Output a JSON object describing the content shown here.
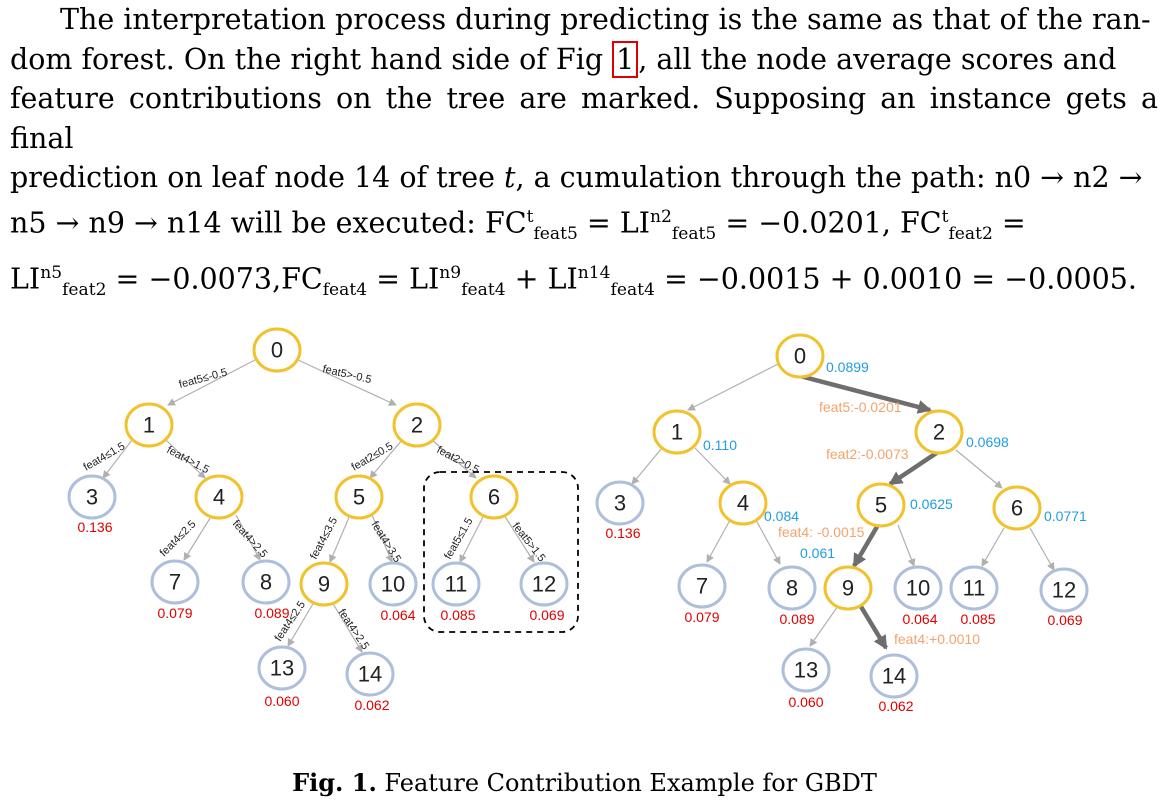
{
  "paragraph": {
    "lines": [
      "The interpretation process during predicting is the same as that of the ran-",
      "dom forest. On the right hand side of Fig ",
      ", all the node average scores and",
      "feature contributions on the tree are marked. Supposing an instance gets a final",
      "prediction on leaf node 14 of tree ",
      "t",
      ", a cumulation through the path: n0 → n2 →",
      "n5 → n9 → n14 will be executed: FC",
      "LI",
      " = −0.0201, FC",
      " =",
      " = −0.0073,FC",
      " = LI",
      " + LI",
      " = −0.0015 + 0.0010 = −0.0005."
    ],
    "fig_ref": "1"
  },
  "left_tree": {
    "nodes": [
      {
        "id": "0"
      },
      {
        "id": "1"
      },
      {
        "id": "2"
      },
      {
        "id": "3",
        "score": "0.136"
      },
      {
        "id": "4"
      },
      {
        "id": "5"
      },
      {
        "id": "6"
      },
      {
        "id": "7",
        "score": "0.079"
      },
      {
        "id": "8",
        "score": "0.089"
      },
      {
        "id": "9"
      },
      {
        "id": "10",
        "score": "0.064"
      },
      {
        "id": "11",
        "score": "0.085"
      },
      {
        "id": "12",
        "score": "0.069"
      },
      {
        "id": "13",
        "score": "0.060"
      },
      {
        "id": "14",
        "score": "0.062"
      }
    ],
    "edge_labels": {
      "e01": "feat5≤-0.5",
      "e02": "feat5>-0.5",
      "e13": "feat4≤1.5",
      "e14": "feat4>1.5",
      "e25": "feat2≤0.5",
      "e26": "feat2>0.5",
      "e47": "feat4≤2.5",
      "e48": "feat4>2.5",
      "e59": "feat4≤3.5",
      "e510": "feat4>3.5",
      "e611": "feat5≤1.5",
      "e612": "feat5>1.5",
      "e913": "feat4≤2.5",
      "e914": "feat4>2.5"
    }
  },
  "right_tree": {
    "nodes": [
      {
        "id": "0",
        "avg": "0.0899"
      },
      {
        "id": "1",
        "avg": "0.110"
      },
      {
        "id": "2",
        "avg": "0.0698"
      },
      {
        "id": "3",
        "score": "0.136"
      },
      {
        "id": "4",
        "avg": "0.084"
      },
      {
        "id": "5",
        "avg": "0.0625"
      },
      {
        "id": "6",
        "avg": "0.0771"
      },
      {
        "id": "7",
        "score": "0.079"
      },
      {
        "id": "8",
        "score": "0.089"
      },
      {
        "id": "9",
        "avg": "0.061"
      },
      {
        "id": "10",
        "score": "0.064"
      },
      {
        "id": "11",
        "score": "0.085"
      },
      {
        "id": "12",
        "score": "0.069"
      },
      {
        "id": "13",
        "score": "0.060"
      },
      {
        "id": "14",
        "score": "0.062"
      }
    ],
    "contributions": {
      "c02": "feat5:-0.0201",
      "c25": "feat2:-0.0073",
      "c59": "feat4: -0.0015",
      "c914": "feat4:+0.0010"
    }
  },
  "caption": {
    "label": "Fig. 1.",
    "text": " Feature Contribution Example for GBDT"
  },
  "colors": {
    "split_node": "#f2c22e",
    "leaf_node": "#aebfdc",
    "leaf_score": "#e00000",
    "avg_score": "#1f9de0",
    "contribution": "#f5a26b",
    "path": "#6e6e6e"
  }
}
